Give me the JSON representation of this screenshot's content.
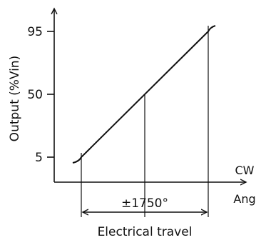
{
  "chart_data": {
    "type": "line",
    "title": "",
    "ylabel": "Output (%Vin)",
    "xlabel": "",
    "y_ticks": [
      5,
      50,
      95
    ],
    "ylim": [
      0,
      105
    ],
    "x_range_label": "±1750°",
    "travel_label": "Electrical travel",
    "direction_labels": [
      "CW",
      "Ang"
    ],
    "series": [
      {
        "x": [
          -1750,
          1750
        ],
        "values": [
          5,
          95
        ]
      }
    ],
    "grid": false
  }
}
